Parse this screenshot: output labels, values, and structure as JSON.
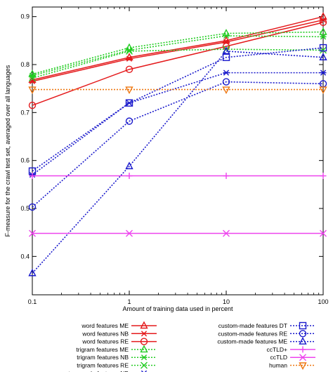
{
  "chart_data": {
    "type": "line",
    "xlabel": "Amount of training data used in percent",
    "ylabel": "F-measure for the crawl test set, averaged over all languages",
    "x": [
      0.1,
      1,
      10,
      100
    ],
    "xscale": "log",
    "xlim": [
      0.1,
      100
    ],
    "ylim": [
      0.32,
      0.92
    ],
    "xticks": [
      {
        "value": 0.1,
        "label": "0.1"
      },
      {
        "value": 1,
        "label": "1"
      },
      {
        "value": 10,
        "label": "10"
      },
      {
        "value": 100,
        "label": "100"
      }
    ],
    "yticks": [
      {
        "value": 0.4,
        "label": "0.4"
      },
      {
        "value": 0.5,
        "label": "0.5"
      },
      {
        "value": 0.6,
        "label": "0.6"
      },
      {
        "value": 0.7,
        "label": "0.7"
      },
      {
        "value": 0.8,
        "label": "0.8"
      },
      {
        "value": 0.9,
        "label": "0.9"
      }
    ],
    "grid": false,
    "legend_placement": "bottom, two columns",
    "series": [
      {
        "name": "word features ME",
        "color": "#e41a1c",
        "dash": "solid",
        "marker": "triangle-up",
        "values": [
          0.768,
          0.815,
          0.85,
          0.9
        ]
      },
      {
        "name": "word features NB",
        "color": "#e41a1c",
        "dash": "solid",
        "marker": "asterisk",
        "values": [
          0.765,
          0.812,
          0.847,
          0.893
        ]
      },
      {
        "name": "word features RE",
        "color": "#e41a1c",
        "dash": "solid",
        "marker": "circle",
        "values": [
          0.715,
          0.79,
          0.838,
          0.888
        ]
      },
      {
        "name": "trigram features ME",
        "color": "#22cc22",
        "dash": "dotted",
        "marker": "triangle-up",
        "values": [
          0.78,
          0.835,
          0.865,
          0.868
        ]
      },
      {
        "name": "trigram features NB",
        "color": "#22cc22",
        "dash": "dotted",
        "marker": "asterisk",
        "values": [
          0.777,
          0.83,
          0.86,
          0.858
        ]
      },
      {
        "name": "trigram features RE",
        "color": "#22cc22",
        "dash": "dotted",
        "marker": "cross",
        "values": [
          0.772,
          0.828,
          0.832,
          0.83
        ]
      },
      {
        "name": "custom-made features NB",
        "color": "#1a1acc",
        "dash": "dotted",
        "marker": "asterisk",
        "values": [
          0.57,
          0.72,
          0.783,
          0.783
        ]
      },
      {
        "name": "custom-made features DT",
        "color": "#1a1acc",
        "dash": "dotted",
        "marker": "square",
        "values": [
          0.578,
          0.72,
          0.815,
          0.835
        ]
      },
      {
        "name": "custom-made features RE",
        "color": "#1a1acc",
        "dash": "dotted",
        "marker": "circle",
        "values": [
          0.503,
          0.682,
          0.764,
          0.76
        ]
      },
      {
        "name": "custom-made features ME",
        "color": "#1a1acc",
        "dash": "dotted",
        "marker": "triangle-up",
        "values": [
          0.365,
          0.588,
          0.828,
          0.815
        ]
      },
      {
        "name": "ccTLD+",
        "color": "#ee44ee",
        "dash": "solid",
        "marker": "plus",
        "values": [
          0.568,
          0.568,
          0.568,
          0.568
        ]
      },
      {
        "name": "ccTLD",
        "color": "#ee44ee",
        "dash": "solid",
        "marker": "cross",
        "values": [
          0.448,
          0.448,
          0.448,
          0.448
        ]
      },
      {
        "name": "human",
        "color": "#ee7711",
        "dash": "dotted",
        "marker": "triangle-down",
        "values": [
          0.748,
          0.748,
          0.748,
          0.748
        ]
      }
    ],
    "legend": {
      "left": [
        "word features ME",
        "word features NB",
        "word features RE",
        "trigram features ME",
        "trigram features NB",
        "trigram features RE",
        "custom-made features NB"
      ],
      "right": [
        "custom-made features DT",
        "custom-made features RE",
        "custom-made features ME",
        "ccTLD+",
        "ccTLD",
        "human"
      ]
    }
  }
}
